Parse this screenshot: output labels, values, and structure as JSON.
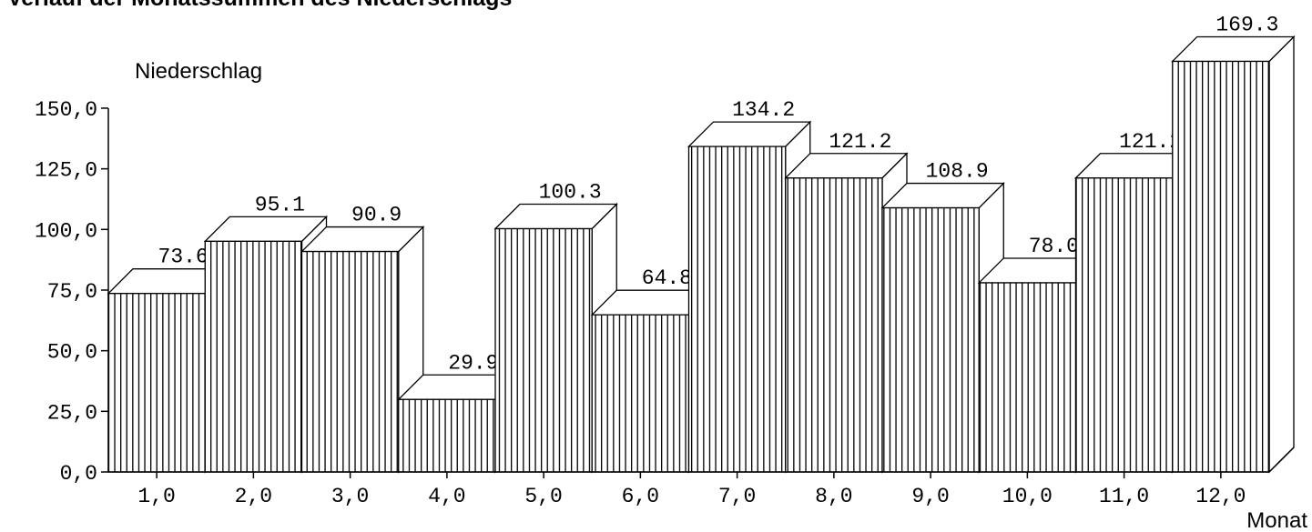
{
  "chart_data": {
    "type": "bar",
    "title": "Verlauf der Monatssummen des Niederschlags",
    "ylabel": "Niederschlag",
    "xlabel": "Monat",
    "categories": [
      "1,0",
      "2,0",
      "3,0",
      "4,0",
      "5,0",
      "6,0",
      "7,0",
      "8,0",
      "9,0",
      "10,0",
      "11,0",
      "12,0"
    ],
    "values": [
      73.6,
      95.1,
      90.9,
      29.9,
      100.3,
      64.8,
      134.2,
      121.2,
      108.9,
      78.0,
      121.2,
      169.3
    ],
    "value_labels": [
      "73.6",
      "95.1",
      "90.9",
      "29.9",
      "100.3",
      "64.8",
      "134.2",
      "121.2",
      "108.9",
      "78.0",
      "121.2",
      "169.3"
    ],
    "ylim": [
      0,
      150
    ],
    "y_ticks": [
      0,
      25,
      50,
      75,
      100,
      125,
      150
    ],
    "y_tick_labels": [
      "0,0",
      "25,0",
      "50,0",
      "75,0",
      "100,0",
      "125,0",
      "150,0"
    ],
    "grid": false,
    "legend": "none",
    "colors": {
      "bar_fill": "#ffffff",
      "stripe": "#000000",
      "outline": "#000000"
    }
  }
}
